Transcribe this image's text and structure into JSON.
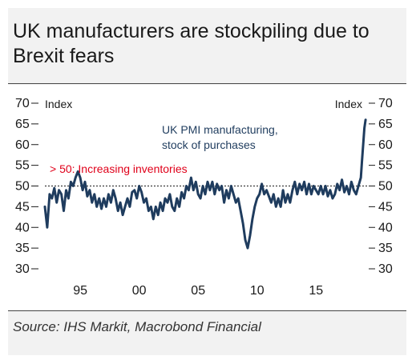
{
  "title": "UK manufacturers are stockpiling due to Brexit fears",
  "source": "Source: IHS Markit, Macrobond Financial",
  "colors": {
    "series": "#1f3c5e",
    "annotation": "#e0001a",
    "text": "#1a1a1a",
    "card": "#f2f2f2"
  },
  "chart_data": {
    "type": "line",
    "title": "UK manufacturers are stockpiling due to Brexit fears",
    "y_left_label": "Index",
    "y_right_label": "Index",
    "ylim": [
      30,
      70
    ],
    "y_ticks": [
      30,
      35,
      40,
      45,
      50,
      55,
      60,
      65,
      70
    ],
    "xlim": [
      1992.0,
      2019.4
    ],
    "x_ticks": [
      1995,
      2000,
      2005,
      2010,
      2015
    ],
    "x_tick_labels": [
      "95",
      "00",
      "05",
      "10",
      "15"
    ],
    "grid": false,
    "reference_line": {
      "y": 50,
      "style": "dashed"
    },
    "annotations": [
      {
        "text": "> 50: Increasing inventories",
        "color": "#e0001a"
      },
      {
        "text_lines": [
          "UK PMI manufacturing,",
          "stock of purchases"
        ],
        "color": "#1f3c5e"
      }
    ],
    "series": [
      {
        "name": "UK PMI manufacturing, stock of purchases",
        "color": "#1f3c5e",
        "points": [
          [
            1992.0,
            45
          ],
          [
            1992.2,
            40
          ],
          [
            1992.4,
            48
          ],
          [
            1992.6,
            47
          ],
          [
            1992.8,
            49.5
          ],
          [
            1993.0,
            46
          ],
          [
            1993.2,
            49
          ],
          [
            1993.4,
            48
          ],
          [
            1993.6,
            44
          ],
          [
            1993.8,
            49
          ],
          [
            1994.0,
            47
          ],
          [
            1994.2,
            51
          ],
          [
            1994.4,
            50
          ],
          [
            1994.6,
            52
          ],
          [
            1994.8,
            53.5
          ],
          [
            1995.0,
            52
          ],
          [
            1995.2,
            49
          ],
          [
            1995.4,
            51
          ],
          [
            1995.6,
            47.5
          ],
          [
            1995.8,
            49
          ],
          [
            1996.0,
            46
          ],
          [
            1996.2,
            48
          ],
          [
            1996.4,
            45
          ],
          [
            1996.6,
            47
          ],
          [
            1996.8,
            44.5
          ],
          [
            1997.0,
            47
          ],
          [
            1997.2,
            45
          ],
          [
            1997.4,
            48
          ],
          [
            1997.6,
            46
          ],
          [
            1997.8,
            49
          ],
          [
            1998.0,
            47
          ],
          [
            1998.2,
            44
          ],
          [
            1998.4,
            46
          ],
          [
            1998.6,
            43
          ],
          [
            1998.8,
            45
          ],
          [
            1999.0,
            47
          ],
          [
            1999.2,
            45
          ],
          [
            1999.4,
            48.5
          ],
          [
            1999.6,
            49
          ],
          [
            1999.8,
            47
          ],
          [
            2000.0,
            50
          ],
          [
            2000.2,
            48.5
          ],
          [
            2000.4,
            46
          ],
          [
            2000.6,
            47
          ],
          [
            2000.8,
            44
          ],
          [
            2001.0,
            45
          ],
          [
            2001.2,
            42
          ],
          [
            2001.4,
            45
          ],
          [
            2001.6,
            43
          ],
          [
            2001.8,
            46
          ],
          [
            2002.0,
            44
          ],
          [
            2002.2,
            47
          ],
          [
            2002.4,
            46
          ],
          [
            2002.6,
            48
          ],
          [
            2002.8,
            45
          ],
          [
            2003.0,
            44
          ],
          [
            2003.2,
            47
          ],
          [
            2003.4,
            45
          ],
          [
            2003.6,
            48.5
          ],
          [
            2003.8,
            47
          ],
          [
            2004.0,
            50
          ],
          [
            2004.2,
            49
          ],
          [
            2004.4,
            52
          ],
          [
            2004.6,
            49
          ],
          [
            2004.8,
            51
          ],
          [
            2005.0,
            48
          ],
          [
            2005.2,
            47
          ],
          [
            2005.4,
            50
          ],
          [
            2005.6,
            48
          ],
          [
            2005.8,
            51
          ],
          [
            2006.0,
            49
          ],
          [
            2006.2,
            51
          ],
          [
            2006.4,
            48
          ],
          [
            2006.6,
            50.5
          ],
          [
            2006.8,
            49
          ],
          [
            2007.0,
            50
          ],
          [
            2007.2,
            46
          ],
          [
            2007.4,
            49
          ],
          [
            2007.6,
            47
          ],
          [
            2007.8,
            50
          ],
          [
            2008.0,
            48
          ],
          [
            2008.2,
            46
          ],
          [
            2008.4,
            47
          ],
          [
            2008.6,
            44
          ],
          [
            2008.8,
            41
          ],
          [
            2009.0,
            37
          ],
          [
            2009.2,
            35
          ],
          [
            2009.4,
            38
          ],
          [
            2009.6,
            42
          ],
          [
            2009.8,
            45
          ],
          [
            2010.0,
            47
          ],
          [
            2010.2,
            48
          ],
          [
            2010.4,
            50.5
          ],
          [
            2010.6,
            48
          ],
          [
            2010.8,
            49
          ],
          [
            2011.0,
            47.5
          ],
          [
            2011.2,
            46
          ],
          [
            2011.4,
            48
          ],
          [
            2011.6,
            45
          ],
          [
            2011.8,
            47
          ],
          [
            2012.0,
            45
          ],
          [
            2012.2,
            49
          ],
          [
            2012.4,
            46
          ],
          [
            2012.6,
            48
          ],
          [
            2012.8,
            46
          ],
          [
            2013.0,
            49
          ],
          [
            2013.2,
            51
          ],
          [
            2013.4,
            48
          ],
          [
            2013.6,
            50.5
          ],
          [
            2013.8,
            49
          ],
          [
            2014.0,
            51
          ],
          [
            2014.2,
            48
          ],
          [
            2014.4,
            50.5
          ],
          [
            2014.6,
            48
          ],
          [
            2014.8,
            50
          ],
          [
            2015.0,
            49
          ],
          [
            2015.2,
            48
          ],
          [
            2015.4,
            50
          ],
          [
            2015.6,
            48
          ],
          [
            2015.8,
            50
          ],
          [
            2016.0,
            47.5
          ],
          [
            2016.2,
            49
          ],
          [
            2016.4,
            47
          ],
          [
            2016.6,
            48
          ],
          [
            2016.8,
            50.5
          ],
          [
            2017.0,
            49
          ],
          [
            2017.2,
            51.5
          ],
          [
            2017.4,
            48.5
          ],
          [
            2017.6,
            50
          ],
          [
            2017.8,
            48
          ],
          [
            2018.0,
            51
          ],
          [
            2018.2,
            49
          ],
          [
            2018.4,
            48
          ],
          [
            2018.6,
            50
          ],
          [
            2018.8,
            52
          ],
          [
            2018.9,
            56
          ],
          [
            2019.0,
            60
          ],
          [
            2019.1,
            64
          ],
          [
            2019.2,
            66
          ]
        ]
      }
    ]
  }
}
